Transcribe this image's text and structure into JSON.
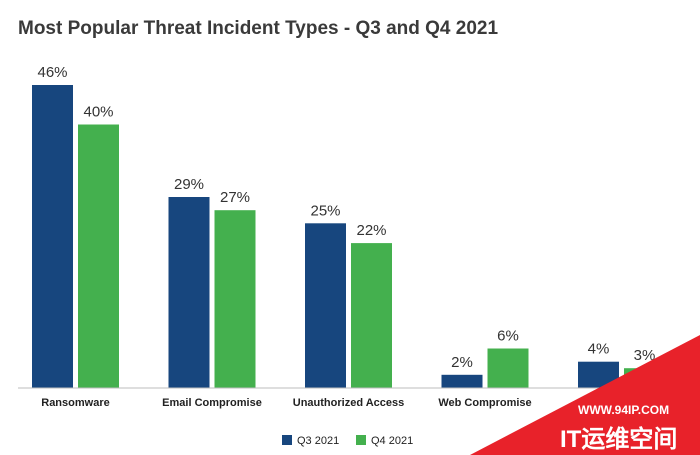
{
  "chart_data": {
    "type": "bar",
    "title": "Most Popular Threat Incident Types - Q3 and Q4 2021",
    "categories": [
      "Ransomware",
      "Email Compromise",
      "Unauthorized Access",
      "Web Compromise",
      ""
    ],
    "series": [
      {
        "name": "Q3 2021",
        "values": [
          46,
          29,
          25,
          2,
          4
        ],
        "labels": [
          "46%",
          "29%",
          "25%",
          "2%",
          "4%"
        ],
        "color": "#17467e"
      },
      {
        "name": "Q4 2021",
        "values": [
          40,
          27,
          22,
          6,
          3
        ],
        "labels": [
          "40%",
          "27%",
          "22%",
          "6%",
          "3%"
        ],
        "color": "#44b04e"
      }
    ],
    "ylim": [
      0,
      46
    ],
    "grid": false,
    "legend": "bottom-center",
    "xlabel": "",
    "ylabel": ""
  },
  "watermark": {
    "url": "WWW.94IP.COM",
    "text": "IT运维空间",
    "color": "#e8222a"
  }
}
